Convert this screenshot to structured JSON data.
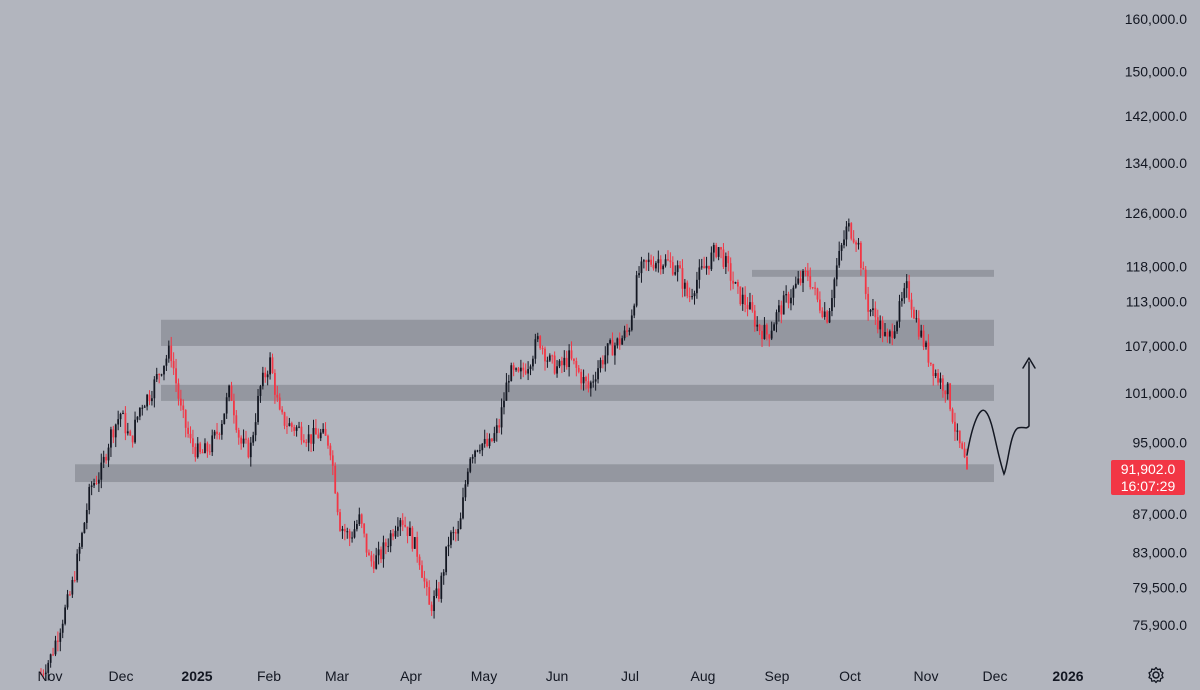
{
  "chart_data": {
    "type": "candlestick",
    "title": "",
    "y_axis": {
      "scale": "log",
      "ticks": [
        "160,000.0",
        "150,000.0",
        "142,000.0",
        "134,000.0",
        "126,000.0",
        "118,000.0",
        "113,000.0",
        "107,000.0",
        "101,000.0",
        "95,000.0",
        "87,000.0",
        "83,000.0",
        "79,500.0",
        "75,900.0"
      ],
      "tick_values": [
        160000,
        150000,
        142000,
        134000,
        126000,
        118000,
        113000,
        107000,
        101000,
        95000,
        87000,
        83000,
        79500,
        75900
      ]
    },
    "x_axis": {
      "ticks": [
        "Nov",
        "Dec",
        "2025",
        "Feb",
        "Mar",
        "Apr",
        "May",
        "Jun",
        "Jul",
        "Aug",
        "Sep",
        "Oct",
        "Nov",
        "Dec",
        "2026"
      ],
      "bold_ticks": [
        "2025",
        "2026"
      ]
    },
    "up_color": "#131722",
    "down_color": "#f23645",
    "price_path": [
      [
        "Nov",
        71500
      ],
      [
        "Nov",
        73000
      ],
      [
        "Nov",
        76000
      ],
      [
        "Nov",
        79000
      ],
      [
        "Nov",
        84000
      ],
      [
        "Nov",
        90000
      ],
      [
        "Nov",
        91500
      ],
      [
        "Dec",
        96000
      ],
      [
        "Dec",
        98500
      ],
      [
        "Dec",
        95000
      ],
      [
        "Dec",
        99500
      ],
      [
        "Dec",
        101000
      ],
      [
        "Dec",
        104000
      ],
      [
        "Dec",
        106500
      ],
      [
        "Dec",
        99000
      ],
      [
        "Dec",
        95000
      ],
      [
        "Dec",
        93500
      ],
      [
        "2025",
        94500
      ],
      [
        "2025",
        97000
      ],
      [
        "2025",
        101500
      ],
      [
        "2025",
        95000
      ],
      [
        "2025",
        94000
      ],
      [
        "2025",
        101500
      ],
      [
        "2025",
        105000
      ],
      [
        "Feb",
        98000
      ],
      [
        "Feb",
        97000
      ],
      [
        "Feb",
        96500
      ],
      [
        "Feb",
        95500
      ],
      [
        "Feb",
        96000
      ],
      [
        "Feb",
        95000
      ],
      [
        "Mar",
        86000
      ],
      [
        "Mar",
        84500
      ],
      [
        "Mar",
        86500
      ],
      [
        "Mar",
        82000
      ],
      [
        "Mar",
        82500
      ],
      [
        "Mar",
        84500
      ],
      [
        "Mar",
        87000
      ],
      [
        "Apr",
        85000
      ],
      [
        "Apr",
        82500
      ],
      [
        "Apr",
        77500
      ],
      [
        "Apr",
        79000
      ],
      [
        "Apr",
        84500
      ],
      [
        "Apr",
        85000
      ],
      [
        "Apr",
        93500
      ],
      [
        "May",
        95000
      ],
      [
        "May",
        94500
      ],
      [
        "May",
        97000
      ],
      [
        "May",
        103500
      ],
      [
        "May",
        103000
      ],
      [
        "May",
        105000
      ],
      [
        "May",
        108000
      ],
      [
        "Jun",
        105000
      ],
      [
        "Jun",
        104000
      ],
      [
        "Jun",
        105500
      ],
      [
        "Jun",
        103500
      ],
      [
        "Jun",
        101500
      ],
      [
        "Jun",
        104500
      ],
      [
        "Jun",
        106500
      ],
      [
        "Jul",
        107500
      ],
      [
        "Jul",
        109000
      ],
      [
        "Jul",
        117000
      ],
      [
        "Jul",
        118500
      ],
      [
        "Jul",
        119000
      ],
      [
        "Jul",
        118500
      ],
      [
        "Jul",
        117500
      ],
      [
        "Aug",
        113500
      ],
      [
        "Aug",
        116500
      ],
      [
        "Aug",
        118500
      ],
      [
        "Aug",
        121000
      ],
      [
        "Aug",
        117500
      ],
      [
        "Aug",
        114000
      ],
      [
        "Aug",
        112500
      ],
      [
        "Sep",
        109500
      ],
      [
        "Sep",
        108500
      ],
      [
        "Sep",
        111500
      ],
      [
        "Sep",
        113500
      ],
      [
        "Sep",
        115500
      ],
      [
        "Sep",
        117000
      ],
      [
        "Sep",
        113000
      ],
      [
        "Oct",
        111000
      ],
      [
        "Oct",
        118500
      ],
      [
        "Oct",
        124000
      ],
      [
        "Oct",
        122000
      ],
      [
        "Oct",
        112500
      ],
      [
        "Oct",
        110500
      ],
      [
        "Oct",
        107500
      ],
      [
        "Nov",
        111000
      ],
      [
        "Nov",
        115000
      ],
      [
        "Nov",
        110000
      ],
      [
        "Nov",
        106000
      ],
      [
        "Nov",
        103000
      ],
      [
        "Nov",
        101500
      ],
      [
        "Nov",
        95500
      ],
      [
        "Nov",
        91902
      ]
    ],
    "support_resistance_zones": [
      {
        "low": 116500,
        "high": 117500
      },
      {
        "low": 107000,
        "high": 110500
      },
      {
        "low": 100000,
        "high": 102000
      },
      {
        "low": 90500,
        "high": 92500
      }
    ],
    "last_price": "91,902.0",
    "countdown": "16:07:29",
    "grid": false,
    "legend": "none",
    "annotation": "hand-drawn projection arrow: bounce toward ~100,000, retest ~92,000, then rise toward ~106,000"
  }
}
